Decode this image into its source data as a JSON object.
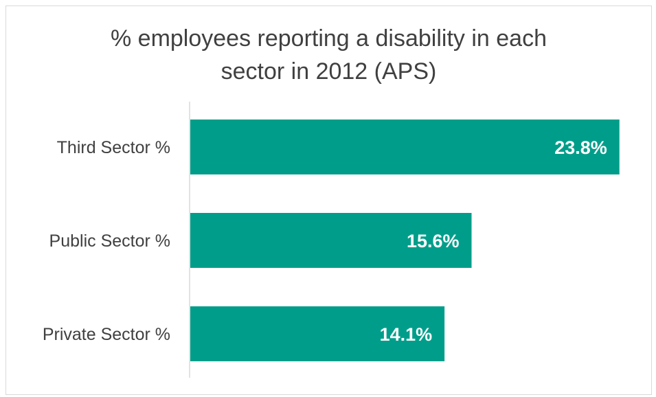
{
  "chart_data": {
    "type": "bar",
    "orientation": "horizontal",
    "title": "% employees reporting a disability in each sector in 2012 (APS)",
    "title_lines": [
      "% employees reporting a disability in each",
      "sector in 2012 (APS)"
    ],
    "categories": [
      "Third Sector %",
      "Public Sector %",
      "Private Sector %"
    ],
    "values": [
      23.8,
      15.6,
      14.1
    ],
    "data_labels": [
      "23.8%",
      "15.6%",
      "14.1%"
    ],
    "xlabel": "",
    "ylabel": "",
    "xlim": [
      0,
      24.0
    ],
    "grid": false,
    "legend": "none",
    "bar_color": "#009e8a",
    "axis_color": "#d9d9d9"
  }
}
